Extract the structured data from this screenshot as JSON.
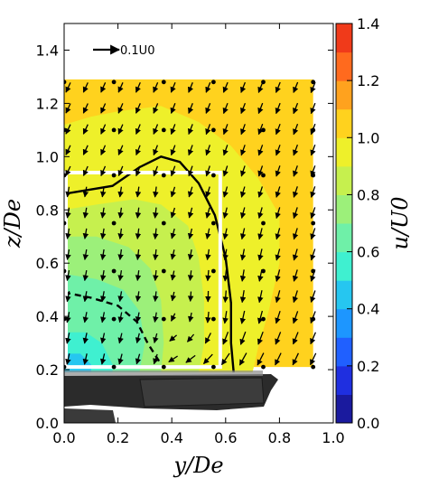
{
  "chart_data": {
    "type": "contour-quiver",
    "xlabel": "y/De",
    "ylabel": "z/De",
    "xlim": [
      0.0,
      1.0
    ],
    "ylim": [
      0.0,
      1.5
    ],
    "x_ticks": [
      "0.0",
      "0.2",
      "0.4",
      "0.6",
      "0.8",
      "1.0"
    ],
    "y_ticks": [
      "0.0",
      "0.2",
      "0.4",
      "0.6",
      "0.8",
      "1.0",
      "1.2",
      "1.4"
    ],
    "colorbar": {
      "label": "u/U0",
      "range": [
        0.0,
        1.4
      ],
      "ticks": [
        "0.0",
        "0.2",
        "0.4",
        "0.6",
        "0.8",
        "1.0",
        "1.2",
        "1.4"
      ],
      "levels": [
        0.0,
        0.1,
        0.2,
        0.3,
        0.4,
        0.5,
        0.6,
        0.7,
        0.8,
        0.9,
        1.0,
        1.1,
        1.2,
        1.3,
        1.4
      ],
      "colors": [
        "#1a1a9e",
        "#1f2fe0",
        "#2060ff",
        "#1d96ff",
        "#26c6f0",
        "#3ff0d0",
        "#6ff0a8",
        "#9cf07a",
        "#c6f04e",
        "#eef02a",
        "#ffd21e",
        "#ffa21e",
        "#ff6a1e",
        "#f03a1a",
        "#b41414"
      ]
    },
    "reference_vector": {
      "label": "0.1U0",
      "magnitude": 0.1
    },
    "contour_lines": [
      {
        "value": 1.0,
        "style": "solid",
        "points": [
          [
            0.0,
            0.86
          ],
          [
            0.18,
            0.89
          ],
          [
            0.28,
            0.96
          ],
          [
            0.36,
            1.0
          ],
          [
            0.43,
            0.98
          ],
          [
            0.5,
            0.9
          ],
          [
            0.56,
            0.78
          ],
          [
            0.6,
            0.62
          ],
          [
            0.62,
            0.45
          ],
          [
            0.62,
            0.3
          ],
          [
            0.63,
            0.19
          ]
        ]
      },
      {
        "value": 0.8,
        "style": "dashed",
        "points": [
          [
            0.0,
            0.49
          ],
          [
            0.1,
            0.47
          ],
          [
            0.2,
            0.44
          ],
          [
            0.27,
            0.38
          ],
          [
            0.31,
            0.3
          ],
          [
            0.36,
            0.22
          ]
        ]
      }
    ],
    "overlay_box": {
      "y_range": [
        0.0,
        0.58
      ],
      "z_range": [
        0.21,
        0.94
      ],
      "color": "#ffffff"
    },
    "grid_dots": {
      "x": [
        0.0,
        0.185,
        0.37,
        0.555,
        0.74,
        0.925
      ],
      "z": [
        1.28,
        1.1,
        0.93,
        0.75,
        0.57,
        0.39,
        0.21
      ]
    },
    "vector_field": {
      "nx": 15,
      "ny": 14,
      "x_range": [
        0.015,
        0.925
      ],
      "z_range": [
        0.24,
        1.26
      ],
      "vortex_center": [
        0.52,
        0.32
      ],
      "mean_flow": [
        -0.045,
        -0.08
      ]
    }
  }
}
